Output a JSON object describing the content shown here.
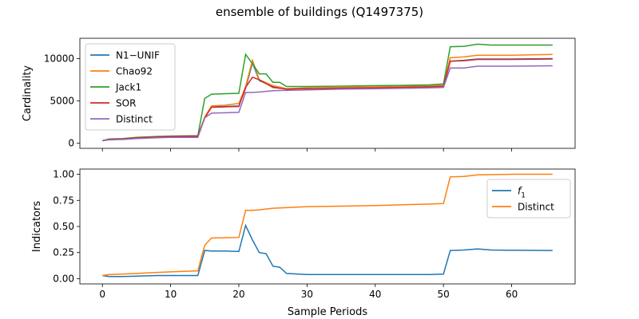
{
  "figure": {
    "title": "ensemble of buildings (Q1497375)",
    "xlabel": "Sample Periods"
  },
  "chart_data": [
    {
      "type": "line",
      "ylabel": "Cardinality",
      "xlim": [
        -3.3,
        69.3
      ],
      "ylim": [
        -600,
        12400
      ],
      "x_ticks": [
        0,
        10,
        20,
        30,
        40,
        50,
        60
      ],
      "x_tick_labels_visible": false,
      "y_ticks": [
        0,
        5000,
        10000
      ],
      "y_tick_labels": [
        "0",
        "5000",
        "10000"
      ],
      "grid": false,
      "legend": {
        "placement": "upper-left",
        "entries": [
          "N1−UNIF",
          "Chao92",
          "Jack1",
          "SOR",
          "Distinct"
        ]
      },
      "series": [
        {
          "name": "N1−UNIF",
          "color": "#1f77b4",
          "x": [
            0,
            1,
            3,
            5,
            8,
            10,
            14,
            15,
            16,
            18,
            20,
            21,
            22,
            23,
            25,
            27,
            30,
            35,
            40,
            45,
            48,
            50,
            51,
            53,
            55,
            60,
            66
          ],
          "values": [
            300,
            450,
            500,
            650,
            750,
            800,
            850,
            3000,
            4300,
            4350,
            4400,
            6500,
            9500,
            7400,
            6700,
            6400,
            6500,
            6550,
            6600,
            6700,
            6750,
            6800,
            9700,
            9800,
            9950,
            9950,
            10000
          ]
        },
        {
          "name": "Chao92",
          "color": "#ff7f0e",
          "x": [
            0,
            1,
            3,
            5,
            8,
            10,
            14,
            15,
            16,
            18,
            20,
            21,
            22,
            23,
            25,
            27,
            30,
            35,
            40,
            45,
            48,
            50,
            51,
            53,
            55,
            60,
            66
          ],
          "values": [
            300,
            450,
            500,
            650,
            750,
            800,
            850,
            3100,
            4400,
            4500,
            4700,
            6700,
            9800,
            7500,
            6800,
            6450,
            6550,
            6600,
            6650,
            6750,
            6800,
            6850,
            10100,
            10200,
            10400,
            10400,
            10500
          ]
        },
        {
          "name": "Jack1",
          "color": "#2ca02c",
          "x": [
            0,
            1,
            3,
            5,
            8,
            10,
            14,
            15,
            16,
            18,
            20,
            21,
            22,
            23,
            24,
            25,
            26,
            27,
            30,
            35,
            40,
            45,
            48,
            50,
            51,
            53,
            55,
            57,
            60,
            66
          ],
          "values": [
            300,
            500,
            550,
            700,
            800,
            850,
            900,
            5300,
            5800,
            5850,
            5900,
            10500,
            9400,
            8200,
            8200,
            7200,
            7200,
            6700,
            6700,
            6750,
            6800,
            6850,
            6900,
            7000,
            11400,
            11450,
            11700,
            11600,
            11600,
            11600
          ]
        },
        {
          "name": "SOR",
          "color": "#d62728",
          "x": [
            0,
            1,
            3,
            5,
            8,
            10,
            14,
            15,
            16,
            18,
            20,
            21,
            22,
            23,
            25,
            27,
            30,
            35,
            40,
            45,
            48,
            50,
            51,
            53,
            55,
            60,
            66
          ],
          "values": [
            300,
            450,
            500,
            650,
            750,
            800,
            850,
            3000,
            4250,
            4300,
            4350,
            6600,
            7800,
            7500,
            6600,
            6400,
            6450,
            6500,
            6550,
            6600,
            6650,
            6700,
            9700,
            9750,
            9900,
            9900,
            9950
          ]
        },
        {
          "name": "Distinct",
          "color": "#9467bd",
          "x": [
            0,
            1,
            3,
            5,
            8,
            10,
            14,
            15,
            16,
            18,
            20,
            21,
            22,
            23,
            25,
            27,
            30,
            35,
            40,
            45,
            48,
            50,
            51,
            53,
            55,
            60,
            66
          ],
          "values": [
            300,
            400,
            450,
            550,
            650,
            700,
            700,
            3000,
            3550,
            3600,
            3650,
            6000,
            6000,
            6050,
            6200,
            6250,
            6300,
            6400,
            6450,
            6500,
            6550,
            6600,
            8900,
            8900,
            9100,
            9100,
            9150
          ]
        }
      ]
    },
    {
      "type": "line",
      "ylabel": "Indicators",
      "xlabel": "Sample Periods",
      "xlim": [
        -3.3,
        69.3
      ],
      "ylim": [
        -0.05,
        1.05
      ],
      "x_ticks": [
        0,
        10,
        20,
        30,
        40,
        50,
        60
      ],
      "x_tick_labels": [
        "0",
        "10",
        "20",
        "30",
        "40",
        "50",
        "60"
      ],
      "y_ticks": [
        0.0,
        0.25,
        0.5,
        0.75,
        1.0
      ],
      "y_tick_labels": [
        "0.00",
        "0.25",
        "0.50",
        "0.75",
        "1.00"
      ],
      "grid": false,
      "legend": {
        "placement": "upper-right",
        "entries": [
          "f1",
          "Distinct"
        ]
      },
      "series": [
        {
          "name": "f1",
          "color": "#1f77b4",
          "x": [
            0,
            1,
            3,
            5,
            8,
            10,
            12,
            14,
            15,
            16,
            18,
            20,
            21,
            22,
            23,
            24,
            25,
            26,
            27,
            30,
            35,
            40,
            45,
            48,
            50,
            51,
            53,
            55,
            57,
            60,
            66
          ],
          "values": [
            0.03,
            0.02,
            0.02,
            0.025,
            0.03,
            0.03,
            0.03,
            0.03,
            0.27,
            0.265,
            0.265,
            0.26,
            0.51,
            0.37,
            0.25,
            0.24,
            0.12,
            0.11,
            0.05,
            0.04,
            0.04,
            0.04,
            0.04,
            0.04,
            0.045,
            0.27,
            0.275,
            0.285,
            0.275,
            0.272,
            0.27
          ]
        },
        {
          "name": "Distinct",
          "color": "#ff7f0e",
          "x": [
            0,
            1,
            3,
            5,
            8,
            10,
            12,
            14,
            15,
            16,
            18,
            20,
            21,
            22,
            23,
            25,
            27,
            30,
            35,
            40,
            45,
            48,
            50,
            51,
            53,
            55,
            60,
            66
          ],
          "values": [
            0.03,
            0.04,
            0.045,
            0.05,
            0.06,
            0.065,
            0.07,
            0.075,
            0.32,
            0.39,
            0.392,
            0.395,
            0.655,
            0.655,
            0.66,
            0.675,
            0.68,
            0.69,
            0.695,
            0.7,
            0.71,
            0.715,
            0.72,
            0.975,
            0.98,
            0.995,
            1.0,
            1.0
          ]
        }
      ]
    }
  ]
}
